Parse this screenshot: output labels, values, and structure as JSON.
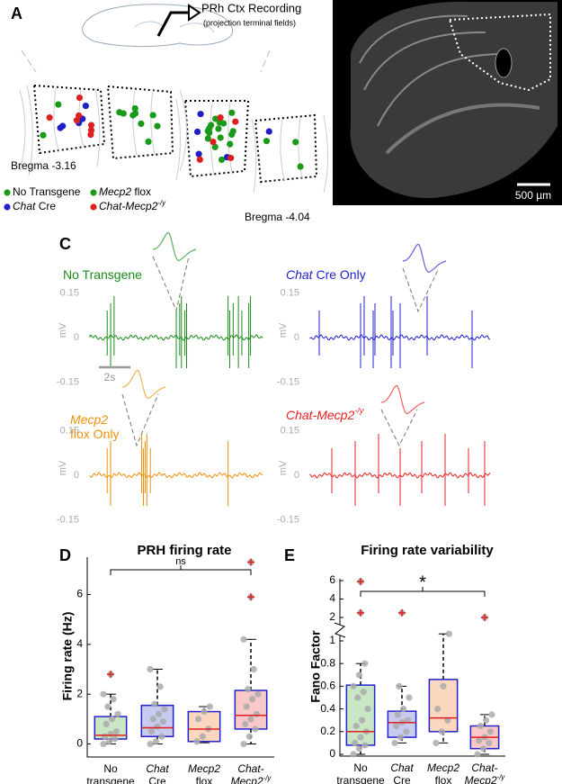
{
  "panel_labels": {
    "a": "A",
    "b": "B",
    "c": "C",
    "d": "D",
    "e": "E"
  },
  "panel_a": {
    "title": "PRh Ctx Recording",
    "subtitle": "(projection terminal fields)",
    "bregma_start": "Bregma -3.16",
    "bregma_end": "Bregma -4.04",
    "legend": [
      {
        "color": "#1a9a1a",
        "label": [
          {
            "t": "No Transgene"
          }
        ]
      },
      {
        "color": "#1a9a1a",
        "label": [
          {
            "t": "Mecp2",
            "italic": true
          },
          {
            "t": " flox"
          }
        ]
      },
      {
        "color": "#1f1fc8",
        "label": [
          {
            "t": "Chat",
            "italic": true
          },
          {
            "t": " Cre"
          }
        ]
      },
      {
        "color": "#e02020",
        "label": [
          {
            "t": "Chat-Mecp2",
            "italic": true
          },
          {
            "t": "-/y",
            "italic": true,
            "sup": true
          }
        ]
      }
    ]
  },
  "panel_b": {
    "scale_label": "500 µm"
  },
  "panel_c": {
    "ylabel": "mV",
    "scale_label": "2s",
    "traces": [
      {
        "color": "#1a8c1a",
        "label": [
          [
            {
              "t": "No Transgene"
            }
          ]
        ],
        "ylim": [
          -0.2,
          0.2
        ],
        "yticks": [
          0.15,
          0,
          -0.15
        ]
      },
      {
        "color": "#1f1fd0",
        "label": [
          [
            {
              "t": "Chat",
              "italic": true
            },
            {
              "t": " Cre Only"
            }
          ]
        ],
        "ylim": [
          -0.2,
          0.2
        ],
        "yticks": [
          0.15,
          0,
          -0.15
        ]
      },
      {
        "color": "#f0900a",
        "label": [
          [
            {
              "t": "Mecp2",
              "italic": true
            }
          ],
          [
            {
              "t": "flox Only"
            }
          ]
        ],
        "ylim": [
          -0.2,
          0.2
        ],
        "yticks": [
          0.15,
          0,
          -0.15
        ]
      },
      {
        "color": "#e82020",
        "label": [
          [
            {
              "t": "Chat-Mecp2",
              "italic": true
            },
            {
              "t": "-/y",
              "italic": true,
              "sup": true
            }
          ]
        ],
        "ylim": [
          -0.2,
          0.2
        ],
        "yticks": [
          0.15,
          0,
          -0.15
        ]
      }
    ]
  },
  "chart_data": [
    {
      "type": "box",
      "title": "PRH firing rate",
      "ylabel": "Firing rate (Hz)",
      "annotation": "ns",
      "categories": [
        [
          [
            {
              "t": "No"
            }
          ],
          [
            {
              "t": "transgene"
            }
          ]
        ],
        [
          [
            {
              "t": "Chat",
              "italic": true
            }
          ],
          [
            {
              "t": "Cre"
            }
          ]
        ],
        [
          [
            {
              "t": "Mecp2",
              "italic": true
            }
          ],
          [
            {
              "t": "flox"
            }
          ]
        ],
        [
          [
            {
              "t": "Chat-",
              "italic": true
            }
          ],
          [
            {
              "t": "Mecp2",
              "italic": true
            },
            {
              "t": "-/y",
              "italic": true,
              "sup": true
            }
          ]
        ]
      ],
      "ylim": [
        -0.45,
        7.5
      ],
      "yticks": [
        0,
        2,
        4,
        6
      ],
      "boxes": [
        {
          "fill": "#c9e7c5",
          "low": 0,
          "q1": 0.2,
          "median": 0.35,
          "q3": 1.1,
          "high": 2.0,
          "outliers": [
            2.8
          ],
          "points": [
            0,
            0.1,
            0.2,
            0.3,
            0.4,
            0.5,
            0.8,
            1.0,
            1.2,
            1.5,
            1.8,
            2.0
          ]
        },
        {
          "fill": "#c8cbf0",
          "low": 0,
          "q1": 0.3,
          "median": 0.65,
          "q3": 1.55,
          "high": 3.0,
          "outliers": [],
          "points": [
            0,
            0.1,
            0.3,
            0.5,
            0.7,
            0.9,
            1.0,
            1.2,
            1.4,
            1.6,
            2.3,
            3.0
          ]
        },
        {
          "fill": "#fcd7c0",
          "low": 0.05,
          "q1": 0.1,
          "median": 0.6,
          "q3": 1.3,
          "high": 1.5,
          "outliers": [],
          "points": [
            0.1,
            0.3,
            0.6,
            1.0,
            1.3,
            1.5
          ]
        },
        {
          "fill": "#f9c9c9",
          "low": 0,
          "q1": 0.6,
          "median": 1.15,
          "q3": 2.15,
          "high": 4.2,
          "outliers": [
            5.9,
            7.3
          ],
          "points": [
            0,
            0.3,
            0.6,
            0.8,
            1.0,
            1.2,
            1.5,
            1.8,
            2.0,
            2.2,
            3.0,
            4.2
          ]
        }
      ]
    },
    {
      "type": "box",
      "title": "Firing rate variability",
      "ylabel": "Fano Factor",
      "annotation": "*",
      "categories": [
        [
          [
            {
              "t": "No"
            }
          ],
          [
            {
              "t": "transgene"
            }
          ]
        ],
        [
          [
            {
              "t": "Chat",
              "italic": true
            }
          ],
          [
            {
              "t": "Cre"
            }
          ]
        ],
        [
          [
            {
              "t": "Mecp2",
              "italic": true
            }
          ],
          [
            {
              "t": "flox"
            }
          ]
        ],
        [
          [
            {
              "t": "Chat-",
              "italic": true
            }
          ],
          [
            {
              "t": "Mecp2",
              "italic": true
            },
            {
              "t": "-/y",
              "italic": true,
              "sup": true
            }
          ]
        ]
      ],
      "ylim": [
        0,
        6.2
      ],
      "axis_break": [
        1,
        2
      ],
      "yticks": [
        0,
        0.2,
        0.4,
        0.6,
        0.8,
        1,
        2,
        4,
        6
      ],
      "boxes": [
        {
          "fill": "#c9e7c5",
          "low": 0,
          "q1": 0.08,
          "median": 0.2,
          "q3": 0.61,
          "high": 0.8,
          "outliers": [
            2.5,
            5.9
          ],
          "points": [
            0,
            0.05,
            0.08,
            0.1,
            0.15,
            0.2,
            0.25,
            0.3,
            0.4,
            0.5,
            0.55,
            0.6,
            0.7,
            0.8
          ]
        },
        {
          "fill": "#c8cbf0",
          "low": 0.1,
          "q1": 0.15,
          "median": 0.28,
          "q3": 0.38,
          "high": 0.6,
          "outliers": [
            2.5
          ],
          "points": [
            0.1,
            0.15,
            0.2,
            0.25,
            0.28,
            0.3,
            0.35,
            0.4,
            0.5,
            0.6
          ]
        },
        {
          "fill": "#fcd7c0",
          "low": 0.1,
          "q1": 0.2,
          "median": 0.32,
          "q3": 0.66,
          "high": 1.3,
          "outliers": [],
          "points": [
            0.1,
            0.2,
            0.3,
            0.4,
            0.6,
            1.3
          ]
        },
        {
          "fill": "#f9c9c9",
          "low": 0,
          "q1": 0.05,
          "median": 0.15,
          "q3": 0.25,
          "high": 0.35,
          "outliers": [
            2
          ],
          "points": [
            0,
            0.05,
            0.1,
            0.12,
            0.15,
            0.2,
            0.25,
            0.3,
            0.35
          ]
        }
      ]
    }
  ]
}
